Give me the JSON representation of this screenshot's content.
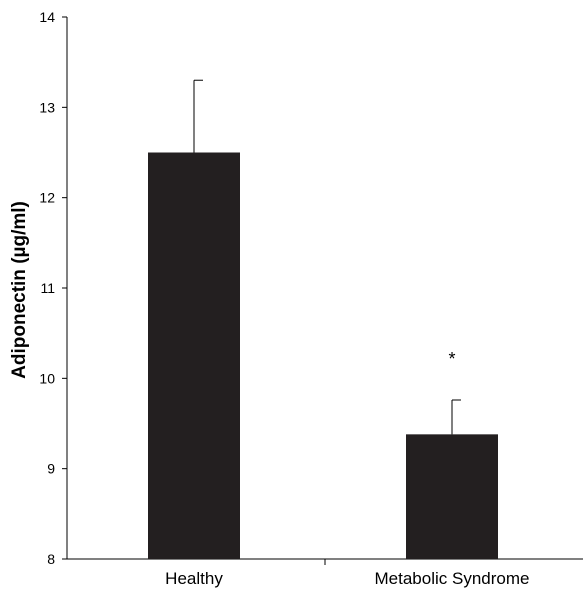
{
  "chart_data": {
    "type": "bar",
    "categories": [
      "Healthy",
      "Metabolic Syndrome"
    ],
    "values": [
      12.5,
      9.38
    ],
    "error_upper": [
      0.8,
      0.38
    ],
    "annotations": [
      "",
      "*"
    ],
    "ylabel": "Adiponectin (µg/ml)",
    "ylim": [
      8,
      14
    ],
    "yticks": [
      8,
      9,
      10,
      11,
      12,
      13,
      14
    ],
    "grid": false,
    "bar_color": "#231f20"
  }
}
